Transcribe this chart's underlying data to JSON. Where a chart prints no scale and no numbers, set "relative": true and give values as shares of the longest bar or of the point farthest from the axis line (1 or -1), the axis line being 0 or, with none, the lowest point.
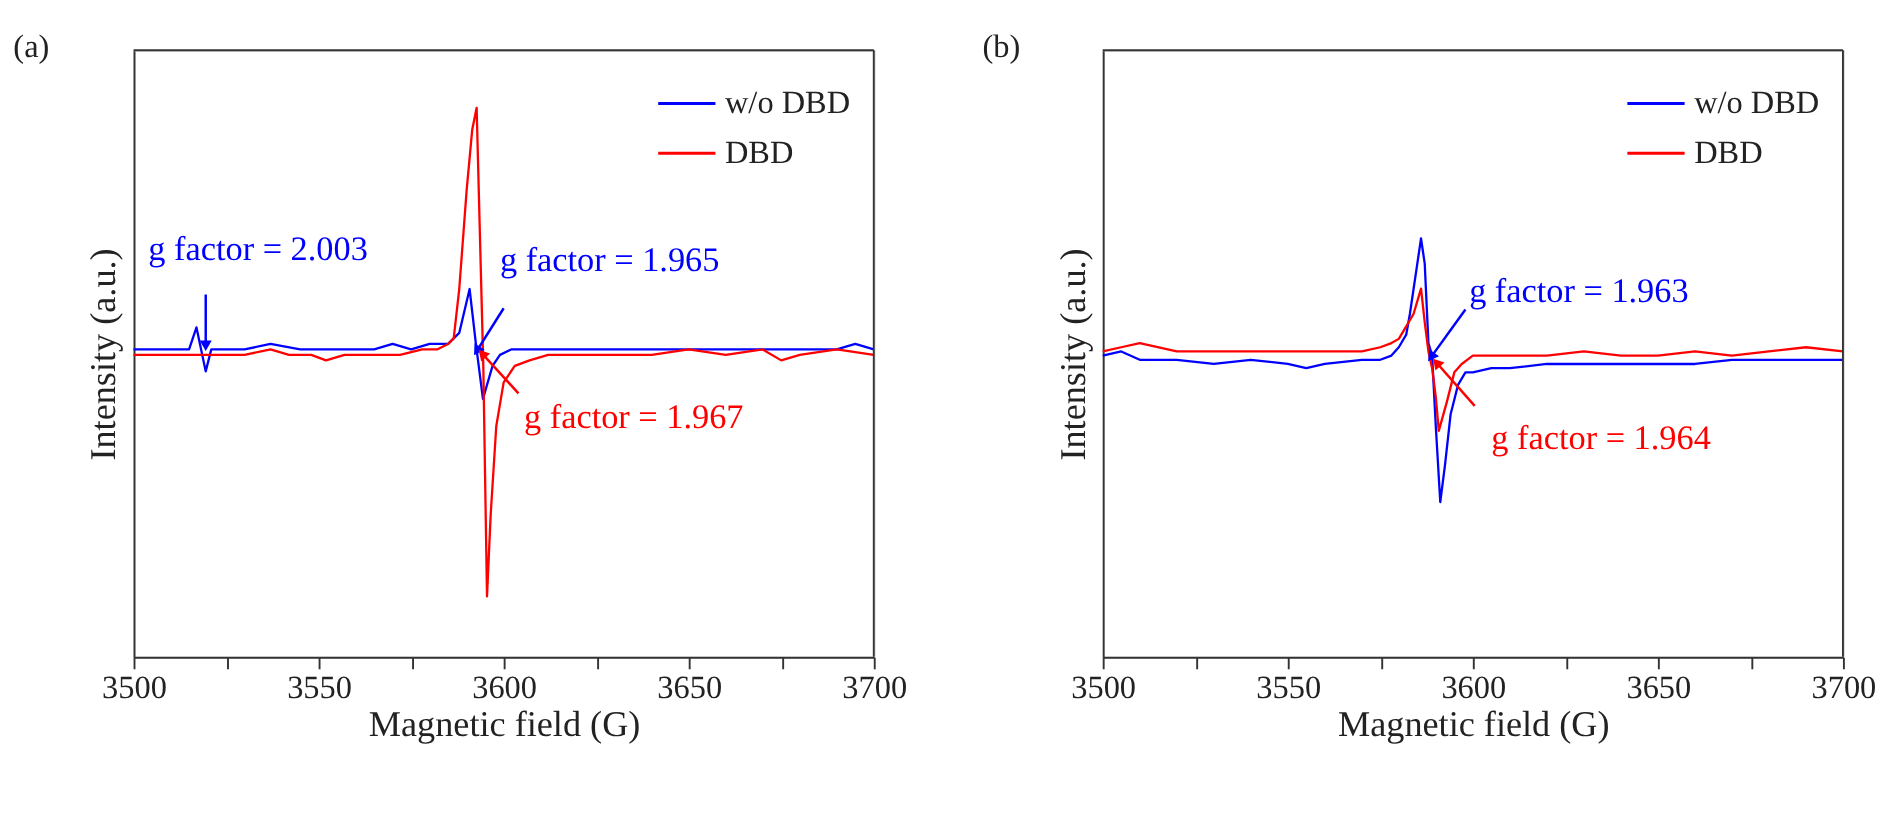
{
  "chart_data": [
    {
      "type": "line",
      "title": "(a)",
      "xlabel": "Magnetic field (G)",
      "ylabel": "Intensity (a.u.)",
      "relative": true,
      "xlim": [
        3500,
        3700
      ],
      "xticks": [
        3500,
        {
          "value": 3525,
          "label": null
        },
        3550,
        {
          "value": 3575,
          "label": null
        },
        3600,
        {
          "value": 3625,
          "label": null
        },
        3650,
        {
          "value": 3675,
          "label": null
        },
        3700
      ],
      "tick_labels": "x",
      "grid": false,
      "legend": "top right",
      "marker": "none",
      "line_style": "solid",
      "series": [
        {
          "name": "w/o DBD",
          "color": "#0000ff",
          "x": [
            3500,
            3505,
            3510,
            3515,
            3517,
            3519.5,
            3521,
            3525,
            3530,
            3537,
            3545,
            3550,
            3555,
            3560,
            3565,
            3570,
            3575,
            3580,
            3585,
            3588,
            3590.8,
            3592.5,
            3594.4,
            3597,
            3599,
            3602,
            3610,
            3620,
            3630,
            3640,
            3650,
            3660,
            3670,
            3680,
            3690,
            3695,
            3700
          ],
          "values": [
            0.56,
            0.56,
            0.56,
            0.56,
            0.6,
            0.52,
            0.56,
            0.56,
            0.56,
            0.57,
            0.56,
            0.56,
            0.56,
            0.56,
            0.56,
            0.57,
            0.56,
            0.57,
            0.57,
            0.59,
            0.67,
            0.57,
            0.47,
            0.53,
            0.55,
            0.56,
            0.56,
            0.56,
            0.56,
            0.56,
            0.56,
            0.56,
            0.56,
            0.56,
            0.56,
            0.57,
            0.56
          ]
        },
        {
          "name": "DBD",
          "color": "#ff0000",
          "x": [
            3500,
            3505,
            3510,
            3515,
            3520,
            3525,
            3530,
            3537,
            3542,
            3548,
            3552,
            3557,
            3562,
            3567,
            3572,
            3578,
            3582,
            3585,
            3586.5,
            3588,
            3590,
            3591.5,
            3592.7,
            3593.5,
            3594.5,
            3595.5,
            3596.5,
            3598,
            3600,
            3603,
            3607,
            3612,
            3620,
            3630,
            3640,
            3650,
            3660,
            3670,
            3675,
            3680,
            3690,
            3700
          ],
          "values": [
            0.55,
            0.55,
            0.55,
            0.55,
            0.55,
            0.55,
            0.55,
            0.56,
            0.55,
            0.55,
            0.54,
            0.55,
            0.55,
            0.55,
            0.55,
            0.56,
            0.56,
            0.57,
            0.58,
            0.67,
            0.85,
            0.96,
            1,
            0.79,
            0.53,
            0.11,
            0.26,
            0.42,
            0.5,
            0.53,
            0.54,
            0.55,
            0.55,
            0.55,
            0.55,
            0.56,
            0.55,
            0.56,
            0.54,
            0.55,
            0.56,
            0.55
          ]
        }
      ],
      "annotations": [
        {
          "text": "g factor = 2.003",
          "x": 3519.5,
          "y": 0.57
        },
        {
          "text": "g factor = 1.965",
          "x": 3593,
          "y": 0.56
        },
        {
          "text": "g factor = 1.967",
          "x": 3594.5,
          "y": 0.55
        }
      ]
    },
    {
      "type": "line",
      "title": "(b)",
      "xlabel": "Magnetic field (G)",
      "ylabel": "Intensity (a.u.)",
      "relative": true,
      "xlim": [
        3500,
        3700
      ],
      "xticks": [
        3500,
        {
          "value": 3525,
          "label": null
        },
        3550,
        {
          "value": 3575,
          "label": null
        },
        3600,
        {
          "value": 3625,
          "label": null
        },
        3650,
        {
          "value": 3675,
          "label": null
        },
        3700
      ],
      "tick_labels": "x",
      "grid": false,
      "legend": "top right",
      "marker": "none",
      "line_style": "solid",
      "series": [
        {
          "name": "w/o DBD",
          "color": "#0000ff",
          "x": [
            3500,
            3505,
            3510,
            3520,
            3530,
            3540,
            3550,
            3555,
            3560,
            3570,
            3575,
            3578,
            3580,
            3582,
            3583,
            3585,
            3586,
            3587,
            3588,
            3589,
            3590,
            3591.2,
            3592.5,
            3594,
            3596,
            3598,
            3600,
            3605,
            3610,
            3620,
            3630,
            3640,
            3650,
            3660,
            3670,
            3680,
            3690,
            3700
          ],
          "values": [
            0.72,
            0.73,
            0.71,
            0.71,
            0.7,
            0.71,
            0.7,
            0.69,
            0.7,
            0.71,
            0.71,
            0.72,
            0.74,
            0.77,
            0.82,
            0.94,
            1,
            0.94,
            0.75,
            0.72,
            0.55,
            0.37,
            0.46,
            0.58,
            0.65,
            0.68,
            0.68,
            0.69,
            0.69,
            0.7,
            0.7,
            0.7,
            0.7,
            0.7,
            0.71,
            0.71,
            0.71,
            0.71
          ]
        },
        {
          "name": "DBD",
          "color": "#ff0000",
          "x": [
            3500,
            3505,
            3510,
            3520,
            3530,
            3540,
            3550,
            3560,
            3570,
            3575,
            3578,
            3580,
            3582,
            3584,
            3586,
            3587,
            3588,
            3589,
            3590,
            3590.8,
            3593,
            3595,
            3597,
            3600,
            3605,
            3610,
            3620,
            3630,
            3640,
            3650,
            3660,
            3670,
            3680,
            3690,
            3700
          ],
          "values": [
            0.73,
            0.74,
            0.75,
            0.73,
            0.73,
            0.73,
            0.73,
            0.73,
            0.73,
            0.74,
            0.75,
            0.76,
            0.79,
            0.82,
            0.88,
            0.8,
            0.73,
            0.69,
            0.62,
            0.54,
            0.61,
            0.68,
            0.7,
            0.72,
            0.72,
            0.72,
            0.72,
            0.73,
            0.72,
            0.72,
            0.73,
            0.72,
            0.73,
            0.74,
            0.73
          ]
        }
      ],
      "annotations": [
        {
          "text": "g factor = 1.963",
          "x": 3589,
          "y": 0.72
        },
        {
          "text": "g factor = 1.964",
          "x": 3590.5,
          "y": 0.7
        }
      ]
    }
  ]
}
